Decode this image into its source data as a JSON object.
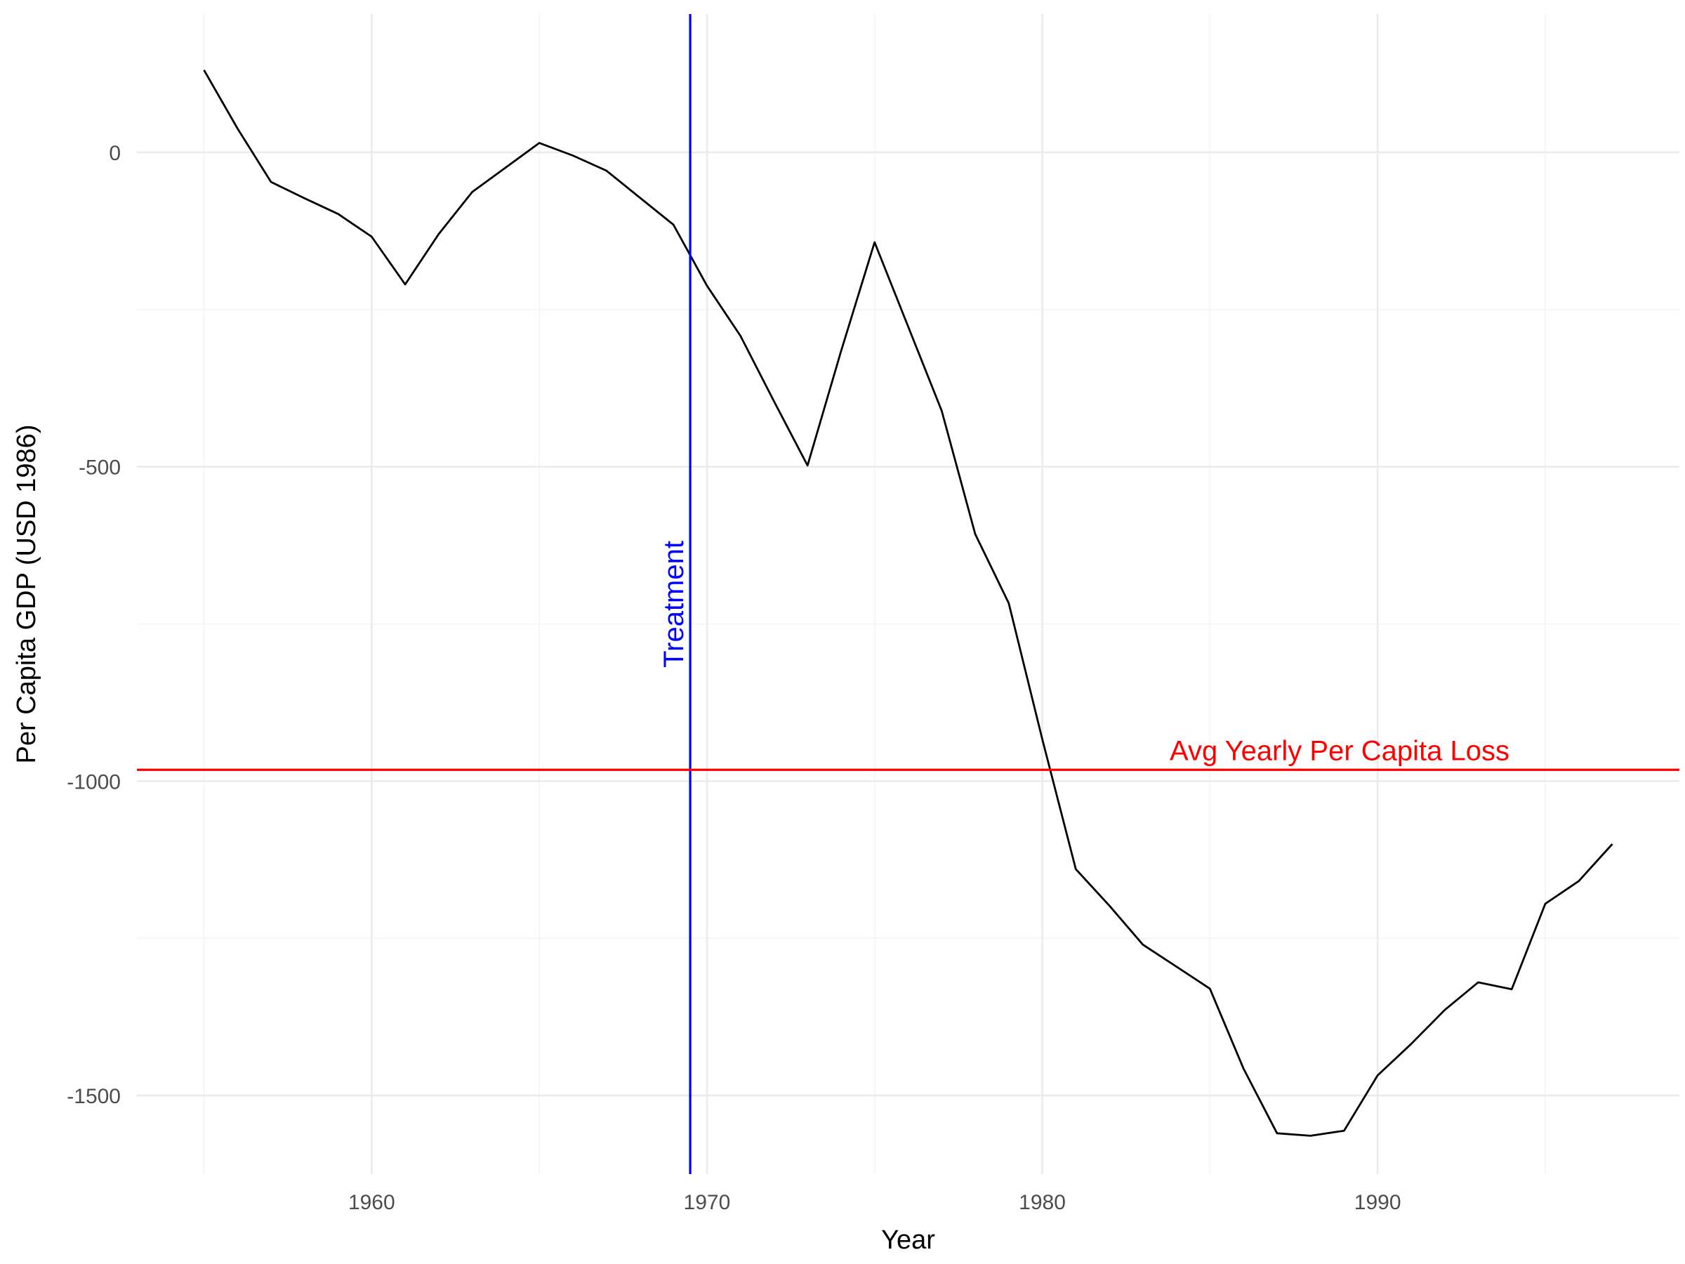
{
  "chart_data": {
    "type": "line",
    "title": "",
    "xlabel": "Year",
    "ylabel": "Per Capita GDP (USD 1986)",
    "xlim": [
      1953,
      1999
    ],
    "ylim": [
      -1625,
      220
    ],
    "x_ticks": [
      1960,
      1970,
      1980,
      1990
    ],
    "x_tick_labels": [
      "1960",
      "1970",
      "1980",
      "1990"
    ],
    "y_ticks": [
      0,
      -500,
      -1000,
      -1500
    ],
    "y_tick_labels": [
      "0",
      "-500",
      "-1000",
      "-1500"
    ],
    "grid": true,
    "legend": "none",
    "series": [
      {
        "color": "#000000",
        "x": [
          1955,
          1956,
          1957,
          1958,
          1959,
          1960,
          1961,
          1962,
          1963,
          1964,
          1965,
          1966,
          1967,
          1968,
          1969,
          1970,
          1971,
          1972,
          1973,
          1974,
          1975,
          1976,
          1977,
          1978,
          1979,
          1980,
          1981,
          1982,
          1983,
          1984,
          1985,
          1986,
          1987,
          1988,
          1989,
          1990,
          1991,
          1992,
          1993,
          1994,
          1995,
          1996,
          1997
        ],
        "y": [
          131,
          38,
          -47,
          -73,
          -98,
          -134,
          -210,
          -130,
          -63,
          -24,
          15,
          -5,
          -29,
          -72,
          -115,
          -212,
          -292,
          -396,
          -498,
          -316,
          -143,
          -277,
          -411,
          -607,
          -717,
          -933,
          -1140,
          -1198,
          -1260,
          -1295,
          -1330,
          -1457,
          -1560,
          -1564,
          -1556,
          -1468,
          -1418,
          -1364,
          -1320,
          -1331,
          -1195,
          -1159,
          -1100
        ]
      }
    ],
    "annotations": [
      {
        "type": "vline",
        "x": 1969.5,
        "label": "Treatment",
        "color": "#0000ff"
      },
      {
        "type": "hline",
        "y": -982,
        "label": "Avg Yearly Per Capita Loss",
        "color": "#ff0000"
      }
    ]
  }
}
